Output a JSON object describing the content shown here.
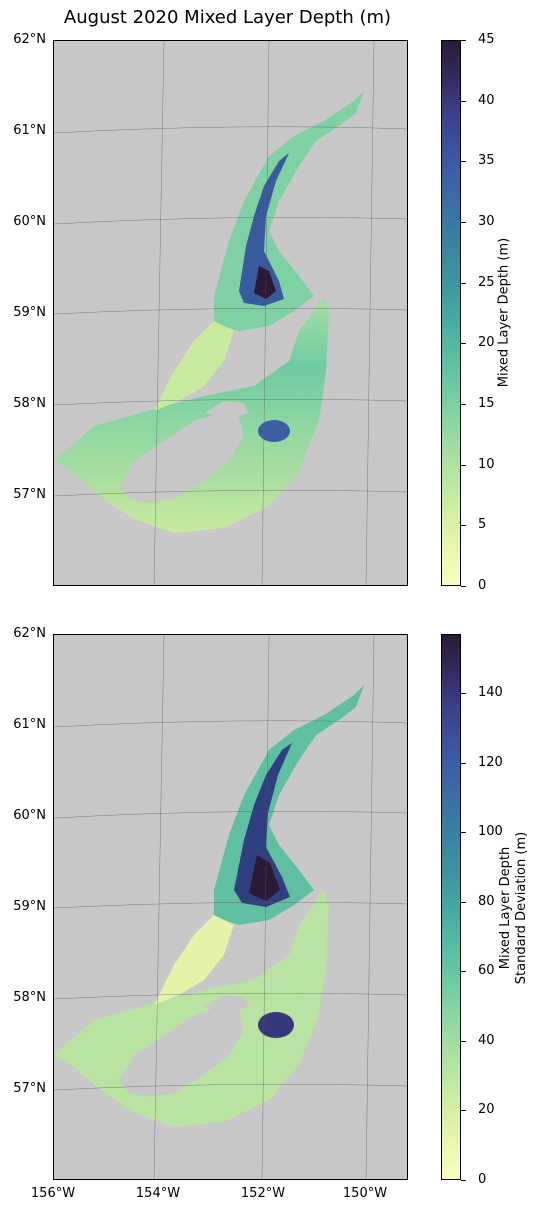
{
  "title": "August 2020 Mixed Layer Depth (m)",
  "lat_labels": [
    "62°N",
    "61°N",
    "60°N",
    "59°N",
    "58°N",
    "57°N"
  ],
  "lon_labels": [
    "156°W",
    "154°W",
    "152°W",
    "150°W"
  ],
  "panels": [
    {
      "name": "mixed-layer-depth",
      "colorbar_label": "Mixed Layer Depth (m)",
      "colorbar_ticks": [
        "0",
        "5",
        "10",
        "15",
        "20",
        "25",
        "30",
        "35",
        "40",
        "45"
      ],
      "colorbar_range": [
        0,
        45
      ]
    },
    {
      "name": "mixed-layer-depth-std",
      "colorbar_label_line1": "Mixed Layer Depth",
      "colorbar_label_line2": "Standard Deviation (m)",
      "colorbar_ticks": [
        "0",
        "20",
        "40",
        "60",
        "80",
        "100",
        "120",
        "140"
      ],
      "colorbar_range": [
        0,
        157
      ]
    }
  ],
  "colors": {
    "land": "#c8c8c8",
    "low": "#fcfdbf",
    "mid": "#4eb3a3",
    "high": "#2a1a36"
  }
}
